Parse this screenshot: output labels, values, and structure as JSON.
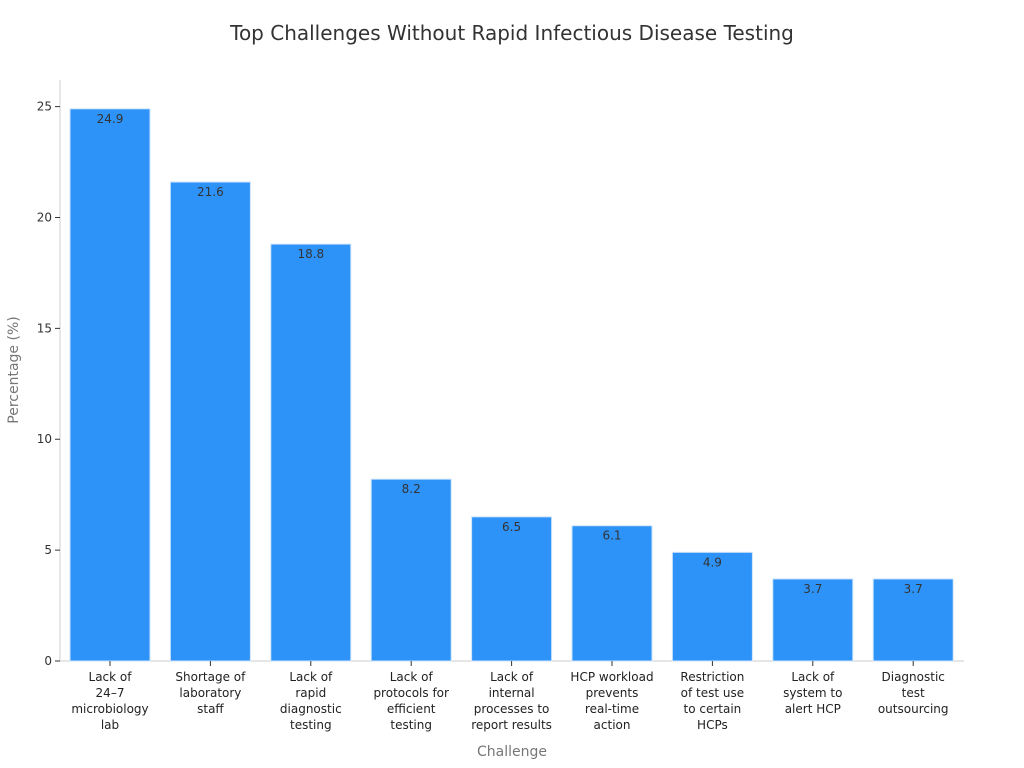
{
  "chart_data": {
    "type": "bar",
    "title": "Top Challenges Without Rapid Infectious Disease Testing",
    "xlabel": "Challenge",
    "ylabel": "Percentage (%)",
    "ylim": [
      0,
      26.2
    ],
    "yticks": [
      0,
      5,
      10,
      15,
      20,
      25
    ],
    "bar_color": "#2e93f8",
    "categories": [
      [
        "Lack of",
        "24–7",
        "microbiology",
        "lab"
      ],
      [
        "Shortage of",
        "laboratory",
        "staff"
      ],
      [
        "Lack of",
        "rapid",
        "diagnostic",
        "testing"
      ],
      [
        "Lack of",
        "protocols for",
        "efficient",
        "testing"
      ],
      [
        "Lack of",
        "internal",
        "processes to",
        "report results"
      ],
      [
        "HCP workload",
        "prevents",
        "real-time",
        "action"
      ],
      [
        "Restriction",
        "of test use",
        "to certain",
        "HCPs"
      ],
      [
        "Lack of",
        "system to",
        "alert HCP"
      ],
      [
        "Diagnostic",
        "test",
        "outsourcing"
      ]
    ],
    "values": [
      24.9,
      21.6,
      18.8,
      8.2,
      6.5,
      6.1,
      4.9,
      3.7,
      3.7
    ],
    "data_labels": [
      "24.9",
      "21.6",
      "18.8",
      "8.2",
      "6.5",
      "6.1",
      "4.9",
      "3.7",
      "3.7"
    ]
  }
}
